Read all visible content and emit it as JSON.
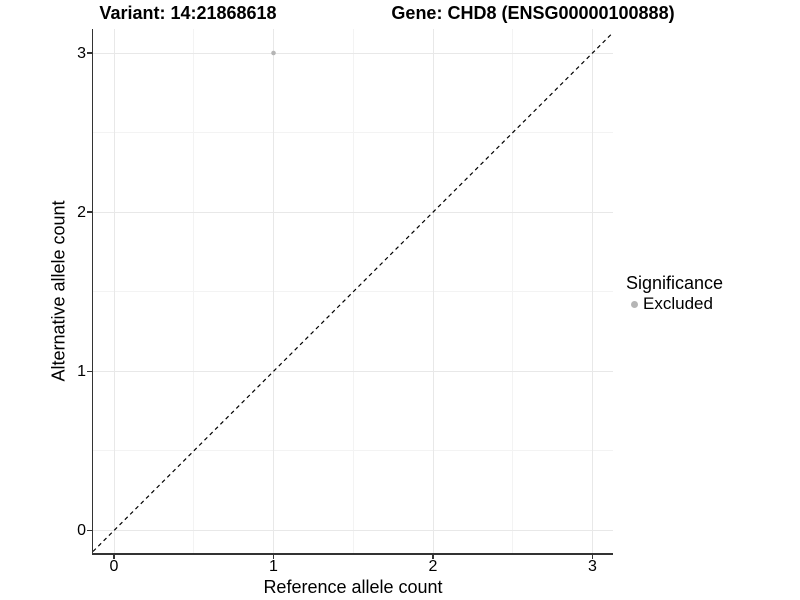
{
  "figure": {
    "title_left": "Variant: 14:21868618",
    "title_right": "Gene: CHD8 (ENSG00000100888)"
  },
  "legend": {
    "title": "Significance",
    "items": [
      {
        "label": "Excluded",
        "color": "#b5b5b5"
      }
    ]
  },
  "chart_data": {
    "type": "scatter",
    "title": "Variant: 14:21868618 — Gene: CHD8 (ENSG00000100888)",
    "xlabel": "Reference allele count",
    "ylabel": "Alternative allele count",
    "xlim": [
      -0.1317,
      3.1285
    ],
    "ylim": [
      -0.1414,
      3.1508
    ],
    "x_ticks": [
      0,
      1,
      2,
      3
    ],
    "y_ticks": [
      0,
      1,
      2,
      3
    ],
    "minor_ticks_x": [
      0.5,
      1.5,
      2.5
    ],
    "minor_ticks_y": [
      0.5,
      1.5,
      2.5
    ],
    "grid": "major+minor",
    "legend_position": "right",
    "series": [
      {
        "name": "Excluded",
        "color": "#b5b5b5",
        "points": [
          {
            "x": 1,
            "y": 3
          }
        ]
      }
    ],
    "reference_line": {
      "slope": 1,
      "intercept": 0,
      "style": "dashed",
      "color": "#000000"
    }
  },
  "colors": {
    "background": "#ffffff",
    "axis_line": "#333333",
    "grid_major": "#e8e8e8",
    "grid_minor": "#f3f3f3",
    "text": "#000000",
    "point": "#b5b5b5"
  }
}
